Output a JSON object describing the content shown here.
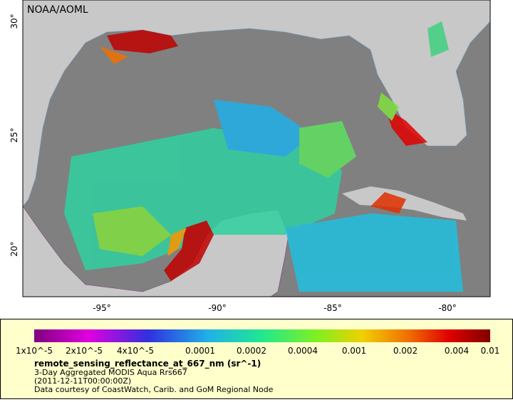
{
  "map": {
    "source": "NOAA/AOML",
    "lat_labels": [
      "30°",
      "25°",
      "20°"
    ],
    "lon_labels": [
      "-95°",
      "-90°",
      "-85°",
      "-80°"
    ]
  },
  "legend": {
    "tick_labels": [
      "1x10^-5",
      "2x10^-5",
      "4x10^-5",
      "0.0001",
      "0.0002",
      "0.0004",
      "0.001",
      "0.002",
      "0.004",
      "0.01"
    ],
    "variable": "remote_sensing_reflectance_at_667_nm (sr^-1)",
    "description": "3-Day Aggregated MODIS Aqua Rrs667",
    "time": "(2011-12-11T00:00:00Z)",
    "credit": "Data courtesy of CoastWatch, Carib. and GoM Regional Node"
  }
}
